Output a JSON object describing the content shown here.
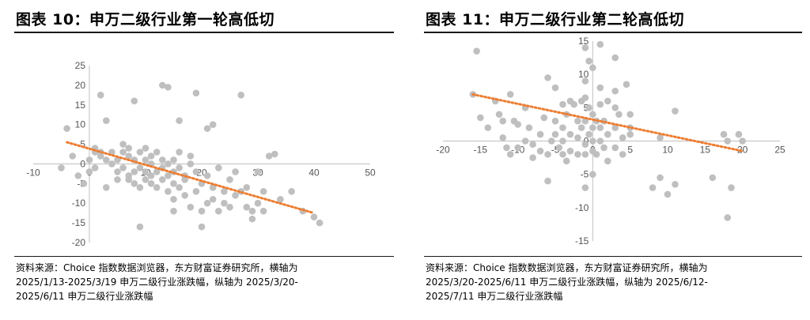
{
  "chart_data": [
    {
      "type": "scatter",
      "title": "图表 10：申万二级行业第一轮高低切",
      "xlim": [
        -10,
        50
      ],
      "ylim": [
        -20,
        25
      ],
      "xticks": [
        -10,
        0,
        10,
        20,
        30,
        40,
        50
      ],
      "yticks": [
        -20,
        -15,
        -10,
        -5,
        0,
        5,
        10,
        15,
        20,
        25
      ],
      "grid": false,
      "marker_color": "#bfbfbf",
      "trend_color": "#ed7d31",
      "trendline": [
        [
          -4,
          5.5
        ],
        [
          40,
          -12.5
        ]
      ],
      "points": [
        [
          -5,
          -1
        ],
        [
          -4,
          9
        ],
        [
          -3,
          2
        ],
        [
          -2,
          -3
        ],
        [
          -1,
          -5
        ],
        [
          0,
          -2
        ],
        [
          0,
          1
        ],
        [
          1,
          3
        ],
        [
          1,
          4
        ],
        [
          1,
          -1
        ],
        [
          2,
          3
        ],
        [
          2,
          17.5
        ],
        [
          2,
          2
        ],
        [
          3,
          -6
        ],
        [
          3,
          1
        ],
        [
          3,
          11
        ],
        [
          4,
          0
        ],
        [
          4,
          3
        ],
        [
          5,
          1
        ],
        [
          5,
          -2
        ],
        [
          5,
          -4
        ],
        [
          6,
          5
        ],
        [
          6,
          -1
        ],
        [
          6,
          3
        ],
        [
          7,
          2
        ],
        [
          7,
          -4
        ],
        [
          7,
          -3
        ],
        [
          7,
          4
        ],
        [
          8,
          1
        ],
        [
          8,
          16
        ],
        [
          8,
          -2
        ],
        [
          8,
          -5
        ],
        [
          9,
          -6
        ],
        [
          9,
          -1
        ],
        [
          9,
          3
        ],
        [
          9,
          -16
        ],
        [
          10,
          -2
        ],
        [
          10,
          -4
        ],
        [
          10,
          1
        ],
        [
          10,
          4
        ],
        [
          11,
          -5
        ],
        [
          11,
          -3
        ],
        [
          11,
          0
        ],
        [
          11,
          2
        ],
        [
          12,
          -6
        ],
        [
          12,
          -2
        ],
        [
          12,
          3
        ],
        [
          13,
          -1
        ],
        [
          13,
          -4
        ],
        [
          13,
          1
        ],
        [
          13,
          20
        ],
        [
          14,
          19.5
        ],
        [
          14,
          -3
        ],
        [
          14,
          -7
        ],
        [
          14,
          0
        ],
        [
          15,
          -2
        ],
        [
          15,
          -5
        ],
        [
          15,
          -9
        ],
        [
          15,
          1
        ],
        [
          15,
          -12
        ],
        [
          16,
          -6
        ],
        [
          16,
          11
        ],
        [
          16,
          3
        ],
        [
          16,
          -1
        ],
        [
          17,
          -3
        ],
        [
          17,
          -4
        ],
        [
          17,
          -8
        ],
        [
          18,
          -11
        ],
        [
          18,
          0
        ],
        [
          18,
          2
        ],
        [
          19,
          -7
        ],
        [
          19,
          -2
        ],
        [
          19,
          18
        ],
        [
          20,
          -12
        ],
        [
          20,
          -16
        ],
        [
          20,
          -5
        ],
        [
          21,
          9
        ],
        [
          21,
          -3
        ],
        [
          21,
          -10
        ],
        [
          22,
          10
        ],
        [
          22,
          -6
        ],
        [
          22,
          -9
        ],
        [
          23,
          -1
        ],
        [
          23,
          -12
        ],
        [
          24,
          -7
        ],
        [
          24,
          -10
        ],
        [
          25,
          -11
        ],
        [
          25,
          -4
        ],
        [
          26,
          -2
        ],
        [
          26,
          -8
        ],
        [
          27,
          17.5
        ],
        [
          27,
          -7
        ],
        [
          28,
          -6
        ],
        [
          28,
          -11
        ],
        [
          29,
          -12
        ],
        [
          29,
          -14
        ],
        [
          30,
          -2
        ],
        [
          30,
          -10
        ],
        [
          31,
          -7
        ],
        [
          31,
          -12
        ],
        [
          32,
          2
        ],
        [
          33,
          2.5
        ],
        [
          34,
          -9
        ],
        [
          36,
          -7
        ],
        [
          38,
          -12
        ],
        [
          40,
          -13.5
        ],
        [
          41,
          -15
        ]
      ]
    },
    {
      "type": "scatter",
      "title": "图表 11：申万二级行业第二轮高低切",
      "xlim": [
        -20,
        25
      ],
      "ylim": [
        -15,
        15
      ],
      "xticks": [
        -20,
        -15,
        -10,
        -5,
        0,
        5,
        10,
        15,
        20,
        25
      ],
      "yticks": [
        -15,
        -10,
        -5,
        0,
        5,
        10,
        15
      ],
      "grid": false,
      "marker_color": "#bfbfbf",
      "trend_color": "#ed7d31",
      "trendline": [
        [
          -16,
          7
        ],
        [
          20,
          -1.5
        ]
      ],
      "points": [
        [
          -15.5,
          13.5
        ],
        [
          -16,
          7
        ],
        [
          -15,
          3.5
        ],
        [
          -14,
          2
        ],
        [
          -13,
          6
        ],
        [
          -12.5,
          4
        ],
        [
          -12,
          3
        ],
        [
          -12,
          0.5
        ],
        [
          -11.5,
          -1
        ],
        [
          -11,
          -2
        ],
        [
          -11,
          7
        ],
        [
          -10.5,
          3
        ],
        [
          -10,
          2.5
        ],
        [
          -10,
          -1
        ],
        [
          -9,
          0
        ],
        [
          -9,
          5
        ],
        [
          -8.5,
          2
        ],
        [
          -8,
          -0.5
        ],
        [
          -8,
          -2.5
        ],
        [
          -7,
          1
        ],
        [
          -7,
          -1.5
        ],
        [
          -6.5,
          3.5
        ],
        [
          -6,
          9.5
        ],
        [
          -6,
          -2
        ],
        [
          -6,
          -6
        ],
        [
          -5.5,
          0
        ],
        [
          -5,
          8
        ],
        [
          -5,
          3
        ],
        [
          -5,
          1
        ],
        [
          -4.5,
          -1
        ],
        [
          -4,
          5.5
        ],
        [
          -4,
          2
        ],
        [
          -4,
          0
        ],
        [
          -4,
          -2
        ],
        [
          -3.5,
          4
        ],
        [
          -3.5,
          -3
        ],
        [
          -3,
          6
        ],
        [
          -3,
          1
        ],
        [
          -3,
          -1.5
        ],
        [
          -2.5,
          5.5
        ],
        [
          -2,
          3
        ],
        [
          -2,
          0.5
        ],
        [
          -2,
          -2
        ],
        [
          -1.5,
          6
        ],
        [
          -1.5,
          2
        ],
        [
          -1,
          14
        ],
        [
          -1,
          9
        ],
        [
          -1,
          6.5
        ],
        [
          -1,
          3
        ],
        [
          -1,
          -0.5
        ],
        [
          -1,
          -2
        ],
        [
          -1,
          -7
        ],
        [
          -0.5,
          12
        ],
        [
          -0.5,
          5
        ],
        [
          -0.5,
          1
        ],
        [
          0,
          11
        ],
        [
          0,
          4
        ],
        [
          0,
          2
        ],
        [
          0,
          0
        ],
        [
          0,
          -1.5
        ],
        [
          0,
          -5
        ],
        [
          0.5,
          3
        ],
        [
          0.5,
          -2
        ],
        [
          1,
          14.5
        ],
        [
          1,
          8
        ],
        [
          1,
          5.5
        ],
        [
          1,
          2
        ],
        [
          1,
          0
        ],
        [
          1.5,
          3
        ],
        [
          1.5,
          -1
        ],
        [
          2,
          6
        ],
        [
          2,
          1
        ],
        [
          2,
          -3
        ],
        [
          3,
          5
        ],
        [
          3,
          12.5
        ],
        [
          3,
          7.5
        ],
        [
          3,
          2
        ],
        [
          3,
          -1
        ],
        [
          3.5,
          4
        ],
        [
          4,
          0.5
        ],
        [
          4,
          -2
        ],
        [
          4.5,
          8.5
        ],
        [
          5,
          2
        ],
        [
          5,
          4
        ],
        [
          5,
          1
        ],
        [
          8,
          -7
        ],
        [
          9,
          -5.5
        ],
        [
          9,
          0.5
        ],
        [
          10,
          -8
        ],
        [
          11,
          -6.5
        ],
        [
          11,
          4.5
        ],
        [
          16,
          -5.5
        ],
        [
          17.5,
          1
        ],
        [
          18,
          0
        ],
        [
          18,
          -11.5
        ],
        [
          18.5,
          -7
        ],
        [
          19.5,
          1
        ],
        [
          20,
          0
        ]
      ]
    }
  ],
  "panels": [
    {
      "title": "图表 10：申万二级行业第一轮高低切",
      "source_lines": [
        "资料来源：Choice 指数数据浏览器，东方财富证券研究所，横轴为",
        "2025/1/13-2025/3/19  申万二级行业涨跌幅，纵轴为  2025/3/20-",
        "2025/6/11 申万二级行业涨跌幅"
      ]
    },
    {
      "title": "图表 11：申万二级行业第二轮高低切",
      "source_lines": [
        "资料来源：Choice 指数数据浏览器，东方财富证券研究所，横轴为",
        "2025/3/20-2025/6/11  申万二级行业涨跌幅，纵轴为  2025/6/12-",
        "2025/7/11 申万二级行业涨跌幅"
      ]
    }
  ]
}
